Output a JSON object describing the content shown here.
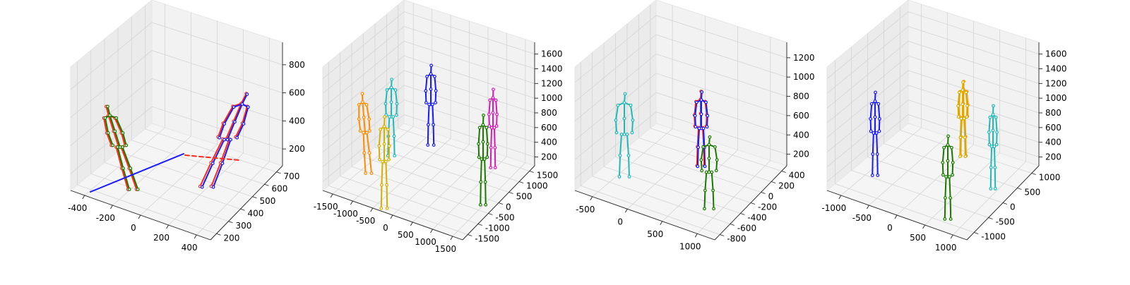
{
  "chart_data": [
    {
      "type": "3d-skeleton",
      "xticks": [
        "-400",
        "-200",
        "0",
        "200",
        "400"
      ],
      "yticks": [
        "200",
        "300",
        "400",
        "500",
        "600",
        "700"
      ],
      "zticks": [
        "200",
        "400",
        "600",
        "800"
      ],
      "series": [
        {
          "color": "#ff2a1a"
        },
        {
          "color": "#1a7a00"
        },
        {
          "color": "#1a1aff"
        },
        {
          "color": "#ff2a1a"
        }
      ]
    },
    {
      "type": "3d-skeleton",
      "xticks": [
        "-1500",
        "-1000",
        "-500",
        "0",
        "500",
        "1000",
        "1500"
      ],
      "yticks": [
        "-1500",
        "-1000",
        "-500",
        "0",
        "500",
        "1000",
        "1500"
      ],
      "zticks": [
        "200",
        "400",
        "600",
        "800",
        "1000",
        "1200",
        "1400",
        "1600"
      ],
      "series": [
        {
          "color": "#ff8c00"
        },
        {
          "color": "#22b8b8"
        },
        {
          "color": "#1a1aff"
        },
        {
          "color": "#d81ab8"
        },
        {
          "color": "#1a7a00"
        },
        {
          "color": "#d4b000"
        }
      ]
    },
    {
      "type": "3d-skeleton",
      "xticks": [
        "-500",
        "0",
        "500",
        "1000"
      ],
      "yticks": [
        "-800",
        "-600",
        "-400",
        "-200",
        "0",
        "200",
        "400"
      ],
      "zticks": [
        "200",
        "400",
        "600",
        "800",
        "1000",
        "1200"
      ],
      "series": [
        {
          "color": "#22b8b8"
        },
        {
          "color": "#1a1aff"
        },
        {
          "color": "#1a7a00"
        },
        {
          "color": "#ff2a1a"
        }
      ]
    },
    {
      "type": "3d-skeleton",
      "xticks": [
        "-1000",
        "-500",
        "0",
        "500",
        "1000"
      ],
      "yticks": [
        "-1000",
        "-500",
        "0",
        "500",
        "1000"
      ],
      "zticks": [
        "200",
        "400",
        "600",
        "800",
        "1000",
        "1200",
        "1400",
        "1600"
      ],
      "series": [
        {
          "color": "#1a1aff"
        },
        {
          "color": "#d4b000"
        },
        {
          "color": "#22b8b8"
        },
        {
          "color": "#1a7a00"
        },
        {
          "color": "#ff8c00"
        }
      ]
    }
  ]
}
